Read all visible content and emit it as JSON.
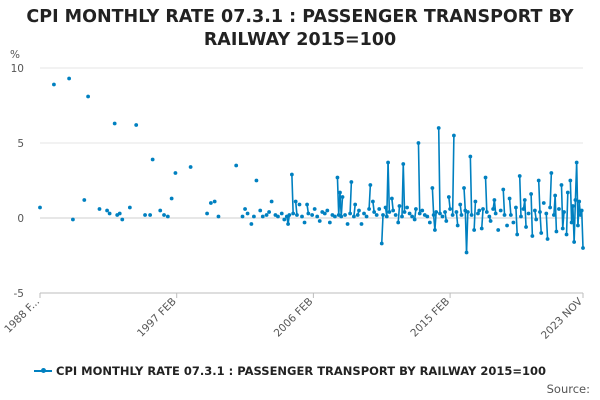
{
  "chart_data": {
    "type": "line",
    "title_line1": "CPI MONTHLY RATE 07.3.1 : PASSENGER TRANSPORT BY",
    "title_line2": "RAILWAY 2015=100",
    "ylabel": "%",
    "ylim": [
      -5,
      10
    ],
    "y_ticks": [
      "10",
      "5",
      "0",
      "-5"
    ],
    "x_tick_labels": [
      "1988 F...",
      "1997 FEB",
      "2006 FEB",
      "2015 FEB",
      "2023 NOV"
    ],
    "x_tick_dates": [
      "1988-02",
      "1997-02",
      "2006-02",
      "2015-02",
      "2023-11"
    ],
    "grid": "horizontal",
    "legend_position": "bottom",
    "color": "#0080c0",
    "series": [
      {
        "name": "CPI MONTHLY RATE 07.3.1 : PASSENGER TRANSPORT BY RAILWAY 2015=100",
        "points": [
          [
            "1988-02",
            0.7
          ],
          [
            "1989-01",
            8.9
          ],
          [
            "1990-01",
            9.3
          ],
          [
            "1990-04",
            -0.1
          ],
          [
            "1991-01",
            1.2
          ],
          [
            "1991-04",
            8.1
          ],
          [
            "1992-01",
            0.6
          ],
          [
            "1992-07",
            0.5
          ],
          [
            "1992-09",
            0.3
          ],
          [
            "1993-01",
            6.3
          ],
          [
            "1993-03",
            0.2
          ],
          [
            "1993-05",
            0.3
          ],
          [
            "1993-07",
            -0.1
          ],
          [
            "1994-01",
            0.7
          ],
          [
            "1994-06",
            6.2
          ],
          [
            "1995-01",
            0.2
          ],
          [
            "1995-05",
            0.2
          ],
          [
            "1995-07",
            3.9
          ],
          [
            "1996-01",
            0.5
          ],
          [
            "1996-04",
            0.2
          ],
          [
            "1996-07",
            0.1
          ],
          [
            "1996-10",
            1.3
          ],
          [
            "1997-01",
            3.0
          ],
          [
            "1998-01",
            3.4
          ],
          [
            "1999-02",
            0.3
          ],
          [
            "1999-05",
            1.0
          ],
          [
            "1999-08",
            1.1
          ],
          [
            "1999-11",
            0.1
          ],
          [
            "2001-01",
            3.5
          ],
          [
            "2001-06",
            0.1
          ],
          [
            "2001-08",
            0.6
          ],
          [
            "2001-10",
            0.3
          ],
          [
            "2002-01",
            -0.4
          ],
          [
            "2002-03",
            0.1
          ],
          [
            "2002-05",
            2.5
          ],
          [
            "2002-08",
            0.5
          ],
          [
            "2002-10",
            0.1
          ],
          [
            "2003-01",
            0.2
          ],
          [
            "2003-03",
            0.4
          ],
          [
            "2003-05",
            1.1
          ],
          [
            "2003-08",
            0.2
          ],
          [
            "2003-10",
            0.1
          ],
          [
            "2004-01",
            0.3
          ],
          [
            "2004-03",
            -0.1
          ],
          [
            "2004-05",
            0.1
          ],
          [
            "2004-06",
            -0.4
          ],
          [
            "2004-07",
            0.2
          ],
          [
            "2004-09",
            2.9
          ],
          [
            "2004-10",
            0.3
          ],
          [
            "2004-12",
            1.1
          ],
          [
            "2005-01",
            0.2
          ],
          [
            "2005-03",
            0.9
          ],
          [
            "2005-05",
            0.1
          ],
          [
            "2005-07",
            -0.3
          ],
          [
            "2005-09",
            0.9
          ],
          [
            "2005-10",
            0.3
          ],
          [
            "2006-01",
            0.2
          ],
          [
            "2006-03",
            0.6
          ],
          [
            "2006-05",
            0.1
          ],
          [
            "2006-07",
            -0.2
          ],
          [
            "2006-09",
            0.4
          ],
          [
            "2006-11",
            0.3
          ],
          [
            "2007-01",
            0.5
          ],
          [
            "2007-03",
            -0.3
          ],
          [
            "2007-05",
            0.2
          ],
          [
            "2007-07",
            0.1
          ],
          [
            "2007-09",
            2.7
          ],
          [
            "2007-10",
            0.2
          ],
          [
            "2007-11",
            1.7
          ],
          [
            "2007-12",
            0.1
          ],
          [
            "2008-01",
            1.4
          ],
          [
            "2008-03",
            0.2
          ],
          [
            "2008-05",
            -0.4
          ],
          [
            "2008-07",
            0.3
          ],
          [
            "2008-08",
            2.4
          ],
          [
            "2008-10",
            0.1
          ],
          [
            "2008-11",
            0.9
          ],
          [
            "2009-01",
            0.2
          ],
          [
            "2009-02",
            0.5
          ],
          [
            "2009-04",
            -0.4
          ],
          [
            "2009-06",
            0.3
          ],
          [
            "2009-08",
            0.1
          ],
          [
            "2009-10",
            0.6
          ],
          [
            "2009-11",
            2.2
          ],
          [
            "2010-01",
            1.1
          ],
          [
            "2010-02",
            0.4
          ],
          [
            "2010-04",
            0.2
          ],
          [
            "2010-06",
            0.6
          ],
          [
            "2010-08",
            -1.7
          ],
          [
            "2010-09",
            0.2
          ],
          [
            "2010-11",
            0.7
          ],
          [
            "2010-12",
            0.1
          ],
          [
            "2011-01",
            3.7
          ],
          [
            "2011-02",
            0.4
          ],
          [
            "2011-04",
            1.3
          ],
          [
            "2011-05",
            0.5
          ],
          [
            "2011-07",
            0.2
          ],
          [
            "2011-09",
            -0.3
          ],
          [
            "2011-10",
            0.8
          ],
          [
            "2011-12",
            0.1
          ],
          [
            "2012-01",
            3.6
          ],
          [
            "2012-02",
            0.4
          ],
          [
            "2012-04",
            0.7
          ],
          [
            "2012-06",
            0.3
          ],
          [
            "2012-08",
            0.1
          ],
          [
            "2012-10",
            -0.1
          ],
          [
            "2012-11",
            0.6
          ],
          [
            "2013-01",
            5.0
          ],
          [
            "2013-02",
            0.3
          ],
          [
            "2013-04",
            0.5
          ],
          [
            "2013-06",
            0.2
          ],
          [
            "2013-08",
            0.1
          ],
          [
            "2013-10",
            -0.3
          ],
          [
            "2013-12",
            2.0
          ],
          [
            "2014-01",
            0.2
          ],
          [
            "2014-02",
            -0.8
          ],
          [
            "2014-03",
            0.4
          ],
          [
            "2014-05",
            6.0
          ],
          [
            "2014-06",
            0.3
          ],
          [
            "2014-08",
            0.1
          ],
          [
            "2014-10",
            0.4
          ],
          [
            "2014-11",
            -0.2
          ],
          [
            "2015-01",
            1.4
          ],
          [
            "2015-02",
            0.6
          ],
          [
            "2015-04",
            0.2
          ],
          [
            "2015-05",
            5.5
          ],
          [
            "2015-07",
            0.4
          ],
          [
            "2015-08",
            -0.5
          ],
          [
            "2015-10",
            0.9
          ],
          [
            "2015-11",
            0.2
          ],
          [
            "2016-01",
            2.0
          ],
          [
            "2016-02",
            0.5
          ],
          [
            "2016-03",
            -2.3
          ],
          [
            "2016-04",
            0.4
          ],
          [
            "2016-06",
            4.1
          ],
          [
            "2016-07",
            0.2
          ],
          [
            "2016-09",
            -0.8
          ],
          [
            "2016-10",
            1.1
          ],
          [
            "2016-12",
            0.3
          ],
          [
            "2017-01",
            0.5
          ],
          [
            "2017-03",
            -0.7
          ],
          [
            "2017-04",
            0.6
          ],
          [
            "2017-06",
            2.7
          ],
          [
            "2017-07",
            0.4
          ],
          [
            "2017-09",
            0.1
          ],
          [
            "2017-10",
            -0.2
          ],
          [
            "2017-12",
            0.6
          ],
          [
            "2018-01",
            1.2
          ],
          [
            "2018-02",
            0.3
          ],
          [
            "2018-04",
            -0.8
          ],
          [
            "2018-06",
            0.5
          ],
          [
            "2018-08",
            1.9
          ],
          [
            "2018-09",
            0.2
          ],
          [
            "2018-11",
            -0.5
          ],
          [
            "2019-01",
            1.3
          ],
          [
            "2019-02",
            0.2
          ],
          [
            "2019-04",
            -0.3
          ],
          [
            "2019-06",
            0.7
          ],
          [
            "2019-07",
            -1.1
          ],
          [
            "2019-09",
            2.8
          ],
          [
            "2019-10",
            0.1
          ],
          [
            "2019-12",
            0.6
          ],
          [
            "2020-01",
            1.2
          ],
          [
            "2020-02",
            -0.6
          ],
          [
            "2020-04",
            0.3
          ],
          [
            "2020-06",
            1.6
          ],
          [
            "2020-07",
            -1.2
          ],
          [
            "2020-09",
            0.5
          ],
          [
            "2020-10",
            -0.1
          ],
          [
            "2020-12",
            2.5
          ],
          [
            "2021-01",
            0.4
          ],
          [
            "2021-02",
            -1.0
          ],
          [
            "2021-04",
            1.0
          ],
          [
            "2021-06",
            0.3
          ],
          [
            "2021-07",
            -1.4
          ],
          [
            "2021-09",
            0.7
          ],
          [
            "2021-10",
            3.0
          ],
          [
            "2021-12",
            0.2
          ],
          [
            "2022-01",
            1.5
          ],
          [
            "2022-02",
            -0.9
          ],
          [
            "2022-04",
            0.6
          ],
          [
            "2022-06",
            2.2
          ],
          [
            "2022-07",
            -0.7
          ],
          [
            "2022-08",
            0.4
          ],
          [
            "2022-10",
            -1.1
          ],
          [
            "2022-11",
            1.7
          ],
          [
            "2023-01",
            2.5
          ],
          [
            "2023-02",
            -0.3
          ],
          [
            "2023-03",
            0.8
          ],
          [
            "2023-04",
            -1.6
          ],
          [
            "2023-05",
            1.2
          ],
          [
            "2023-06",
            3.7
          ],
          [
            "2023-07",
            -0.5
          ],
          [
            "2023-08",
            1.1
          ],
          [
            "2023-09",
            0.2
          ],
          [
            "2023-10",
            0.5
          ],
          [
            "2023-11",
            -2.0
          ]
        ]
      }
    ]
  },
  "legend": {
    "label": "CPI MONTHLY RATE 07.3.1 : PASSENGER TRANSPORT BY RAILWAY 2015=100"
  },
  "source_label": "Source:"
}
